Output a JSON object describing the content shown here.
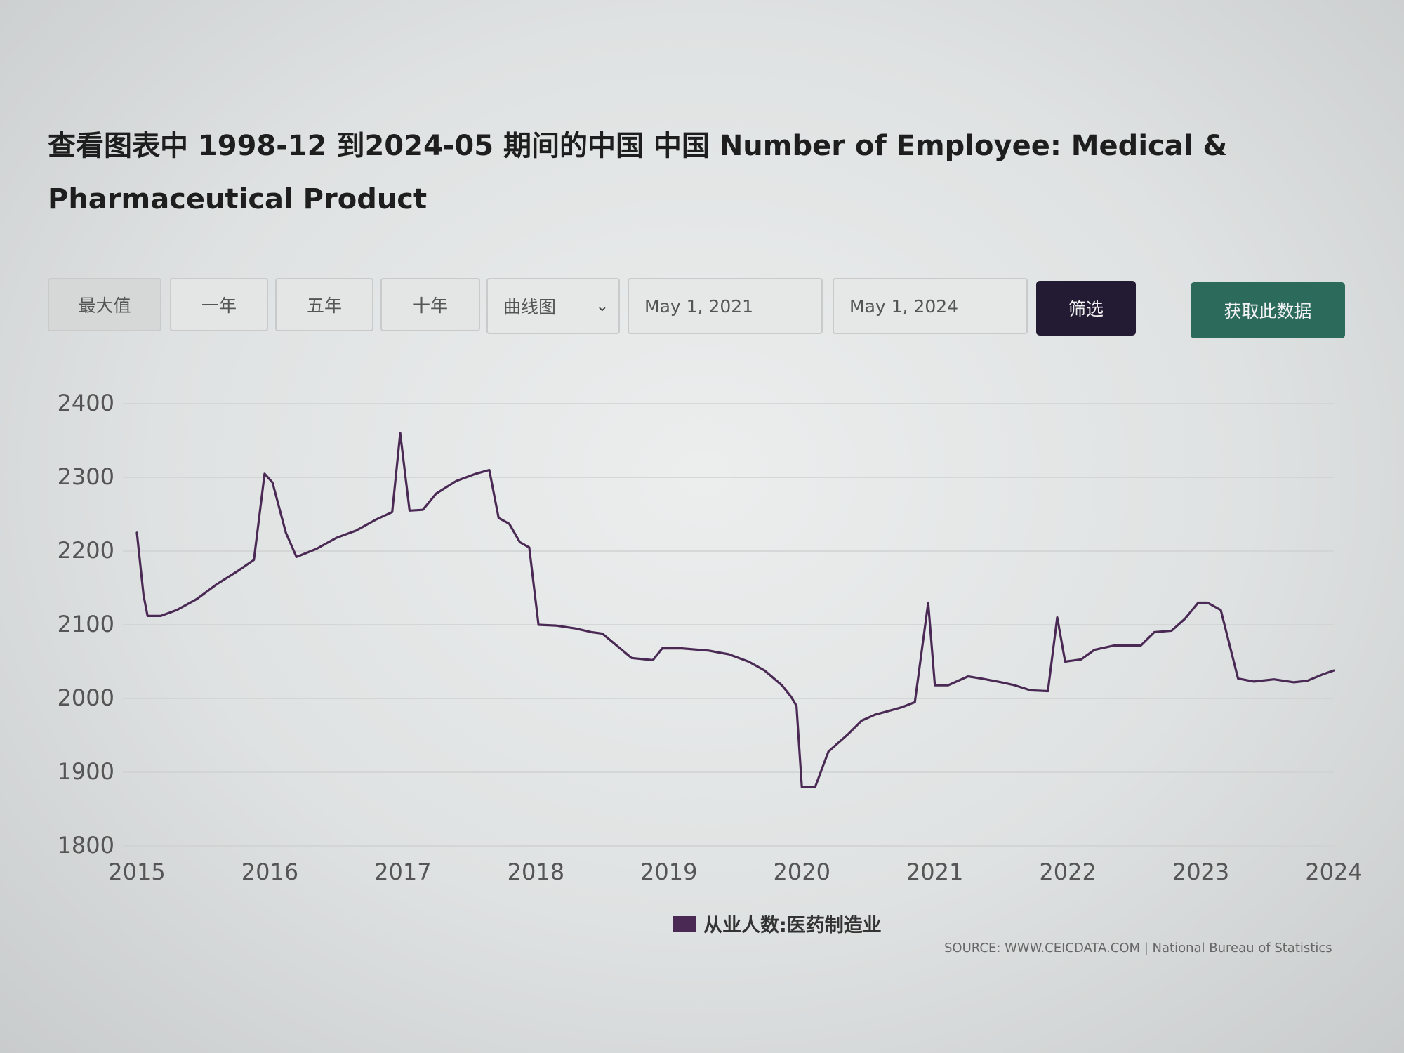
{
  "page": {
    "title": "查看图表中 1998-12 到2024-05 期间的中国 中国 Number of Employee: Medical & Pharmaceutical Product"
  },
  "toolbar": {
    "range_buttons": [
      "最大值",
      "一年",
      "五年",
      "十年"
    ],
    "chart_type": "曲线图",
    "start_date": "May 1, 2021",
    "end_date": "May 1, 2024",
    "filter_label": "筛选",
    "get_data_label": "获取此数据"
  },
  "legend": {
    "label": "从业人数:医药制造业"
  },
  "source": "SOURCE: WWW.CEICDATA.COM | National Bureau of Statistics",
  "colors": {
    "series": "#4a2a55",
    "filter_button": "#231b33",
    "get_data_button": "#2c6a5c"
  },
  "chart_data": {
    "type": "line",
    "title": "",
    "xlabel": "",
    "ylabel": "",
    "ylim": [
      1800,
      2400
    ],
    "xlim": [
      2015.0,
      2024.0
    ],
    "yticks": [
      2400,
      2300,
      2200,
      2100,
      2000,
      1900,
      1800
    ],
    "xticks": [
      "2015",
      "2016",
      "2017",
      "2018",
      "2019",
      "2020",
      "2021",
      "2022",
      "2023",
      "2024"
    ],
    "grid": true,
    "legend_position": "bottom",
    "series": [
      {
        "name": "从业人数:医药制造业",
        "points": [
          [
            2015.0,
            2225
          ],
          [
            2015.05,
            2140
          ],
          [
            2015.08,
            2112
          ],
          [
            2015.18,
            2112
          ],
          [
            2015.3,
            2120
          ],
          [
            2015.45,
            2135
          ],
          [
            2015.6,
            2155
          ],
          [
            2015.75,
            2172
          ],
          [
            2015.88,
            2188
          ],
          [
            2015.96,
            2305
          ],
          [
            2016.02,
            2293
          ],
          [
            2016.12,
            2225
          ],
          [
            2016.2,
            2192
          ],
          [
            2016.35,
            2203
          ],
          [
            2016.5,
            2218
          ],
          [
            2016.65,
            2228
          ],
          [
            2016.8,
            2243
          ],
          [
            2016.92,
            2253
          ],
          [
            2016.98,
            2360
          ],
          [
            2017.05,
            2255
          ],
          [
            2017.15,
            2256
          ],
          [
            2017.25,
            2278
          ],
          [
            2017.4,
            2295
          ],
          [
            2017.55,
            2305
          ],
          [
            2017.65,
            2310
          ],
          [
            2017.72,
            2245
          ],
          [
            2017.8,
            2237
          ],
          [
            2017.88,
            2212
          ],
          [
            2017.95,
            2205
          ],
          [
            2018.02,
            2100
          ],
          [
            2018.15,
            2099
          ],
          [
            2018.3,
            2095
          ],
          [
            2018.42,
            2090
          ],
          [
            2018.5,
            2088
          ],
          [
            2018.62,
            2070
          ],
          [
            2018.72,
            2055
          ],
          [
            2018.88,
            2052
          ],
          [
            2018.95,
            2068
          ],
          [
            2019.1,
            2068
          ],
          [
            2019.3,
            2065
          ],
          [
            2019.45,
            2060
          ],
          [
            2019.6,
            2050
          ],
          [
            2019.72,
            2038
          ],
          [
            2019.85,
            2018
          ],
          [
            2019.92,
            2002
          ],
          [
            2019.96,
            1990
          ],
          [
            2020.0,
            1880
          ],
          [
            2020.1,
            1880
          ],
          [
            2020.2,
            1928
          ],
          [
            2020.35,
            1952
          ],
          [
            2020.45,
            1970
          ],
          [
            2020.55,
            1978
          ],
          [
            2020.65,
            1983
          ],
          [
            2020.75,
            1988
          ],
          [
            2020.85,
            1995
          ],
          [
            2020.95,
            2130
          ],
          [
            2021.0,
            2018
          ],
          [
            2021.1,
            2018
          ],
          [
            2021.25,
            2030
          ],
          [
            2021.35,
            2027
          ],
          [
            2021.5,
            2022
          ],
          [
            2021.6,
            2018
          ],
          [
            2021.72,
            2011
          ],
          [
            2021.85,
            2010
          ],
          [
            2021.92,
            2110
          ],
          [
            2021.98,
            2050
          ],
          [
            2022.1,
            2053
          ],
          [
            2022.2,
            2066
          ],
          [
            2022.35,
            2072
          ],
          [
            2022.55,
            2072
          ],
          [
            2022.65,
            2090
          ],
          [
            2022.78,
            2092
          ],
          [
            2022.88,
            2108
          ],
          [
            2022.98,
            2130
          ],
          [
            2023.05,
            2130
          ],
          [
            2023.15,
            2120
          ],
          [
            2023.28,
            2027
          ],
          [
            2023.4,
            2023
          ],
          [
            2023.55,
            2026
          ],
          [
            2023.7,
            2022
          ],
          [
            2023.8,
            2024
          ],
          [
            2023.92,
            2033
          ],
          [
            2024.0,
            2038
          ]
        ]
      }
    ]
  }
}
